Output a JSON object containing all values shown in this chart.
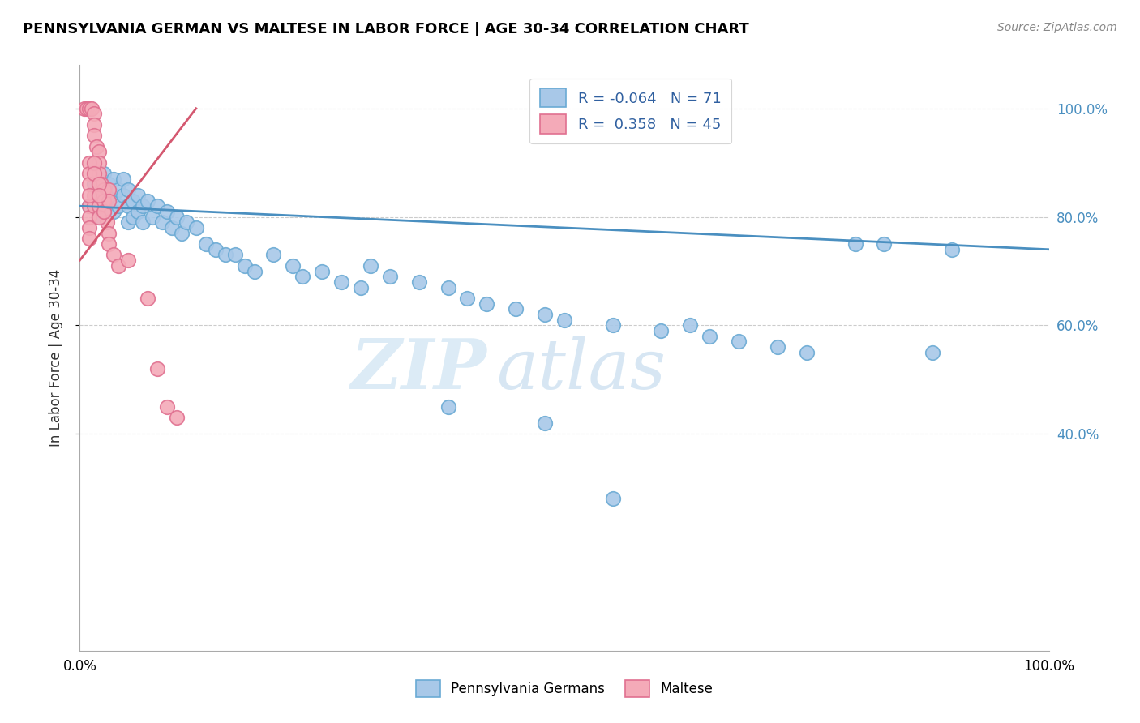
{
  "title": "PENNSYLVANIA GERMAN VS MALTESE IN LABOR FORCE | AGE 30-34 CORRELATION CHART",
  "source": "Source: ZipAtlas.com",
  "ylabel": "In Labor Force | Age 30-34",
  "watermark_zip": "ZIP",
  "watermark_atlas": "atlas",
  "legend_blue_R": "-0.064",
  "legend_blue_N": "71",
  "legend_pink_R": "0.358",
  "legend_pink_N": "45",
  "legend_blue_label": "Pennsylvania Germans",
  "legend_pink_label": "Maltese",
  "blue_color": "#a8c8e8",
  "blue_edge_color": "#6aaad4",
  "blue_line_color": "#4a8fc0",
  "pink_color": "#f4aab8",
  "pink_edge_color": "#e07090",
  "pink_line_color": "#d45870",
  "blue_scatter": [
    [
      1.0,
      82.0
    ],
    [
      1.5,
      86.0
    ],
    [
      1.5,
      90.0
    ],
    [
      2.0,
      84.0
    ],
    [
      2.0,
      80.0
    ],
    [
      2.5,
      88.0
    ],
    [
      2.5,
      85.0
    ],
    [
      2.5,
      82.0
    ],
    [
      3.0,
      86.0
    ],
    [
      3.0,
      83.0
    ],
    [
      3.5,
      87.0
    ],
    [
      3.5,
      84.0
    ],
    [
      3.5,
      81.0
    ],
    [
      4.0,
      85.0
    ],
    [
      4.0,
      82.0
    ],
    [
      4.5,
      87.0
    ],
    [
      4.5,
      84.0
    ],
    [
      5.0,
      85.0
    ],
    [
      5.0,
      82.0
    ],
    [
      5.0,
      79.0
    ],
    [
      5.5,
      83.0
    ],
    [
      5.5,
      80.0
    ],
    [
      6.0,
      84.0
    ],
    [
      6.0,
      81.0
    ],
    [
      6.5,
      82.0
    ],
    [
      6.5,
      79.0
    ],
    [
      7.0,
      83.0
    ],
    [
      7.5,
      80.0
    ],
    [
      8.0,
      82.0
    ],
    [
      8.5,
      79.0
    ],
    [
      9.0,
      81.0
    ],
    [
      9.5,
      78.0
    ],
    [
      10.0,
      80.0
    ],
    [
      10.5,
      77.0
    ],
    [
      11.0,
      79.0
    ],
    [
      12.0,
      78.0
    ],
    [
      13.0,
      75.0
    ],
    [
      14.0,
      74.0
    ],
    [
      15.0,
      73.0
    ],
    [
      16.0,
      73.0
    ],
    [
      17.0,
      71.0
    ],
    [
      18.0,
      70.0
    ],
    [
      20.0,
      73.0
    ],
    [
      22.0,
      71.0
    ],
    [
      23.0,
      69.0
    ],
    [
      25.0,
      70.0
    ],
    [
      27.0,
      68.0
    ],
    [
      29.0,
      67.0
    ],
    [
      30.0,
      71.0
    ],
    [
      32.0,
      69.0
    ],
    [
      35.0,
      68.0
    ],
    [
      38.0,
      67.0
    ],
    [
      40.0,
      65.0
    ],
    [
      42.0,
      64.0
    ],
    [
      45.0,
      63.0
    ],
    [
      48.0,
      62.0
    ],
    [
      50.0,
      61.0
    ],
    [
      55.0,
      60.0
    ],
    [
      60.0,
      59.0
    ],
    [
      63.0,
      60.0
    ],
    [
      65.0,
      58.0
    ],
    [
      68.0,
      57.0
    ],
    [
      72.0,
      56.0
    ],
    [
      75.0,
      55.0
    ],
    [
      80.0,
      75.0
    ],
    [
      83.0,
      75.0
    ],
    [
      88.0,
      55.0
    ],
    [
      90.0,
      74.0
    ],
    [
      55.0,
      28.0
    ],
    [
      38.0,
      45.0
    ],
    [
      48.0,
      42.0
    ]
  ],
  "pink_scatter": [
    [
      0.5,
      100.0
    ],
    [
      0.7,
      100.0
    ],
    [
      1.0,
      100.0
    ],
    [
      1.2,
      100.0
    ],
    [
      1.5,
      99.0
    ],
    [
      1.5,
      97.0
    ],
    [
      1.5,
      95.0
    ],
    [
      1.7,
      93.0
    ],
    [
      2.0,
      92.0
    ],
    [
      2.0,
      90.0
    ],
    [
      2.0,
      88.0
    ],
    [
      2.2,
      86.0
    ],
    [
      2.5,
      85.0
    ],
    [
      2.5,
      83.0
    ],
    [
      2.5,
      81.0
    ],
    [
      2.8,
      79.0
    ],
    [
      3.0,
      77.0
    ],
    [
      3.0,
      75.0
    ],
    [
      3.5,
      73.0
    ],
    [
      4.0,
      71.0
    ],
    [
      1.0,
      82.0
    ],
    [
      1.0,
      80.0
    ],
    [
      1.0,
      78.0
    ],
    [
      1.0,
      76.0
    ],
    [
      1.5,
      84.0
    ],
    [
      1.5,
      82.0
    ],
    [
      2.0,
      82.0
    ],
    [
      2.0,
      80.0
    ],
    [
      2.5,
      83.0
    ],
    [
      2.5,
      81.0
    ],
    [
      3.0,
      85.0
    ],
    [
      3.0,
      83.0
    ],
    [
      1.0,
      90.0
    ],
    [
      1.0,
      88.0
    ],
    [
      1.0,
      86.0
    ],
    [
      1.0,
      84.0
    ],
    [
      1.5,
      90.0
    ],
    [
      1.5,
      88.0
    ],
    [
      2.0,
      86.0
    ],
    [
      2.0,
      84.0
    ],
    [
      5.0,
      72.0
    ],
    [
      7.0,
      65.0
    ],
    [
      8.0,
      52.0
    ],
    [
      9.0,
      45.0
    ],
    [
      10.0,
      43.0
    ]
  ],
  "blue_trendline_x": [
    0.0,
    100.0
  ],
  "blue_trendline_y": [
    82.0,
    74.0
  ],
  "pink_trendline_x": [
    0.0,
    12.0
  ],
  "pink_trendline_y": [
    72.0,
    100.0
  ],
  "xlim": [
    0.0,
    100.0
  ],
  "ylim": [
    0.0,
    108.0
  ],
  "yticks": [
    40.0,
    60.0,
    80.0,
    100.0
  ],
  "ytick_labels": [
    "40.0%",
    "60.0%",
    "80.0%",
    "100.0%"
  ],
  "xticks": [
    0.0,
    100.0
  ],
  "xtick_labels": [
    "0.0%",
    "100.0%"
  ],
  "figsize": [
    14.06,
    8.92
  ],
  "dpi": 100
}
